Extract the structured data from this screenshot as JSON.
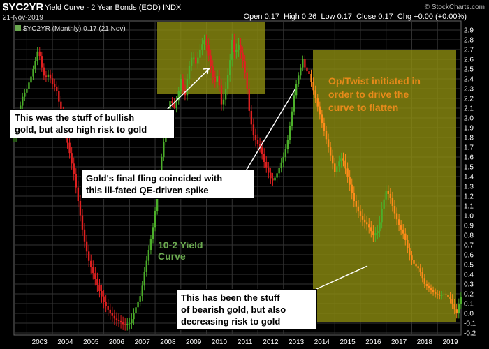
{
  "header": {
    "symbol": "$YC2YR",
    "description": "Yield Curve - 2 Year Bonds (EOD)  INDX",
    "date": "21-Nov-2019",
    "open_label": "Open",
    "open": "0.17",
    "high_label": "High",
    "high": "0.26",
    "low_label": "Low",
    "low": "0.17",
    "close_label": "Close",
    "close": "0.17",
    "chg_label": "Chg",
    "chg": "+0.00 (+0.00%)",
    "brand": "© StockCharts.com"
  },
  "legend": {
    "text": "$YC2YR (Monthly) 0.17 (21 Nov)"
  },
  "annotations": {
    "bullish": [
      "This was the stuff of bullish",
      "gold, but also high risk to gold"
    ],
    "spike": [
      "Gold's final fling coincided with",
      "this ill-fated QE-driven spike"
    ],
    "twist": [
      "Op/Twist initiated in",
      "order to drive the",
      "curve to flatten"
    ],
    "yield_curve": [
      "10-2 Yield",
      "Curve"
    ],
    "bearish": [
      "This has been the stuff",
      "of bearish gold, but also",
      "decreasing risk to gold"
    ]
  },
  "colors": {
    "up": "#4caf2a",
    "down": "#e02020",
    "down_light": "#ff8c1a",
    "highlight": "#8c8c10"
  },
  "chart_data": {
    "type": "line",
    "ylim": [
      -0.2,
      2.9
    ],
    "yticks": [
      "-0.2",
      "-0.1",
      "0.0",
      "0.1",
      "0.2",
      "0.3",
      "0.4",
      "0.5",
      "0.6",
      "0.7",
      "0.8",
      "0.9",
      "1.0",
      "1.1",
      "1.2",
      "1.3",
      "1.4",
      "1.5",
      "1.6",
      "1.7",
      "1.8",
      "1.9",
      "2.0",
      "2.1",
      "2.2",
      "2.3",
      "2.4",
      "2.5",
      "2.6",
      "2.7",
      "2.8",
      "2.9"
    ],
    "xlim": [
      2002.5,
      2019.92
    ],
    "xticks": [
      "2003",
      "2004",
      "2005",
      "2006",
      "2007",
      "2008",
      "2009",
      "2010",
      "2011",
      "2012",
      "2013",
      "2014",
      "2015",
      "2016",
      "2017",
      "2018",
      "2019"
    ],
    "series": [
      {
        "points": [
          [
            2002.5,
            1.8
          ],
          [
            2002.6,
            1.9
          ],
          [
            2002.7,
            2.05
          ],
          [
            2002.8,
            2.2
          ],
          [
            2002.9,
            2.25
          ],
          [
            2003.0,
            2.3
          ],
          [
            2003.2,
            2.45
          ],
          [
            2003.35,
            2.6
          ],
          [
            2003.45,
            2.72
          ],
          [
            2003.55,
            2.55
          ],
          [
            2003.7,
            2.4
          ],
          [
            2003.85,
            2.45
          ],
          [
            2004.0,
            2.35
          ],
          [
            2004.15,
            2.3
          ],
          [
            2004.3,
            2.1
          ],
          [
            2004.5,
            1.85
          ],
          [
            2004.7,
            1.6
          ],
          [
            2004.85,
            1.4
          ],
          [
            2005.0,
            1.15
          ],
          [
            2005.2,
            0.8
          ],
          [
            2005.4,
            0.55
          ],
          [
            2005.6,
            0.4
          ],
          [
            2005.8,
            0.25
          ],
          [
            2006.0,
            0.12
          ],
          [
            2006.2,
            0.02
          ],
          [
            2006.4,
            -0.05
          ],
          [
            2006.6,
            -0.08
          ],
          [
            2006.8,
            -0.12
          ],
          [
            2007.0,
            -0.1
          ],
          [
            2007.1,
            -0.05
          ],
          [
            2007.3,
            0.1
          ],
          [
            2007.45,
            0.2
          ],
          [
            2007.6,
            0.45
          ],
          [
            2007.75,
            0.65
          ],
          [
            2007.9,
            0.85
          ],
          [
            2008.0,
            1.05
          ],
          [
            2008.15,
            1.4
          ],
          [
            2008.3,
            1.7
          ],
          [
            2008.45,
            1.95
          ],
          [
            2008.6,
            2.2
          ],
          [
            2008.75,
            2.1
          ],
          [
            2008.9,
            2.25
          ],
          [
            2009.0,
            2.4
          ],
          [
            2009.15,
            2.2
          ],
          [
            2009.3,
            2.5
          ],
          [
            2009.45,
            2.65
          ],
          [
            2009.6,
            2.55
          ],
          [
            2009.75,
            2.7
          ],
          [
            2009.9,
            2.8
          ],
          [
            2010.0,
            2.75
          ],
          [
            2010.15,
            2.55
          ],
          [
            2010.3,
            2.35
          ],
          [
            2010.45,
            2.45
          ],
          [
            2010.6,
            2.1
          ],
          [
            2010.75,
            2.3
          ],
          [
            2010.9,
            2.55
          ],
          [
            2011.0,
            2.8
          ],
          [
            2011.1,
            2.65
          ],
          [
            2011.25,
            2.75
          ],
          [
            2011.4,
            2.6
          ],
          [
            2011.55,
            2.4
          ],
          [
            2011.65,
            2.1
          ],
          [
            2011.8,
            1.85
          ],
          [
            2011.95,
            1.75
          ],
          [
            2012.1,
            1.7
          ],
          [
            2012.25,
            1.55
          ],
          [
            2012.4,
            1.45
          ],
          [
            2012.55,
            1.35
          ],
          [
            2012.7,
            1.4
          ],
          [
            2012.85,
            1.5
          ],
          [
            2013.0,
            1.6
          ],
          [
            2013.15,
            1.75
          ],
          [
            2013.3,
            2.0
          ],
          [
            2013.45,
            2.3
          ],
          [
            2013.6,
            2.45
          ],
          [
            2013.75,
            2.6
          ],
          [
            2013.85,
            2.5
          ],
          [
            2014.0,
            2.45
          ],
          [
            2014.15,
            2.3
          ],
          [
            2014.3,
            2.15
          ],
          [
            2014.5,
            1.95
          ],
          [
            2014.7,
            1.75
          ],
          [
            2014.9,
            1.55
          ],
          [
            2015.0,
            1.45
          ],
          [
            2015.15,
            1.55
          ],
          [
            2015.3,
            1.6
          ],
          [
            2015.45,
            1.45
          ],
          [
            2015.6,
            1.3
          ],
          [
            2015.75,
            1.15
          ],
          [
            2015.9,
            1.05
          ],
          [
            2016.1,
            0.95
          ],
          [
            2016.3,
            0.9
          ],
          [
            2016.5,
            0.8
          ],
          [
            2016.7,
            0.85
          ],
          [
            2016.85,
            1.1
          ],
          [
            2017.0,
            1.25
          ],
          [
            2017.15,
            1.2
          ],
          [
            2017.3,
            1.05
          ],
          [
            2017.5,
            0.9
          ],
          [
            2017.7,
            0.8
          ],
          [
            2017.9,
            0.6
          ],
          [
            2018.1,
            0.5
          ],
          [
            2018.3,
            0.45
          ],
          [
            2018.5,
            0.3
          ],
          [
            2018.7,
            0.25
          ],
          [
            2018.9,
            0.2
          ],
          [
            2019.1,
            0.18
          ],
          [
            2019.3,
            0.2
          ],
          [
            2019.5,
            0.15
          ],
          [
            2019.65,
            0.05
          ],
          [
            2019.75,
            0.0
          ],
          [
            2019.85,
            0.12
          ],
          [
            2019.92,
            0.17
          ]
        ]
      }
    ]
  }
}
